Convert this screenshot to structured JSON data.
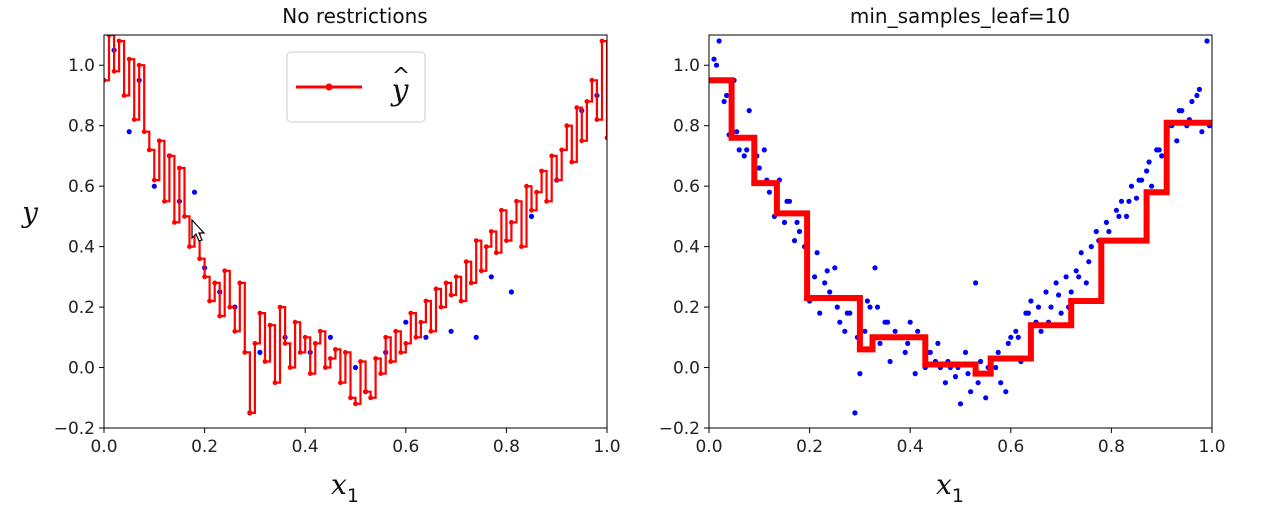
{
  "colors": {
    "points": "#0000ff",
    "prediction": "#ff0000",
    "axes": "#000000"
  },
  "chart_data": [
    {
      "type": "scatter",
      "title": "No restrictions",
      "xlabel": "x",
      "xlabel_sub": "1",
      "ylabel": "y",
      "xlim": [
        0.0,
        1.0
      ],
      "ylim": [
        -0.2,
        1.1
      ],
      "xticks": [
        "0.0",
        "0.2",
        "0.4",
        "0.6",
        "0.8",
        "1.0"
      ],
      "yticks": [
        "−0.2",
        "0.0",
        "0.2",
        "0.4",
        "0.6",
        "0.8",
        "1.0"
      ],
      "legend": {
        "label": "y",
        "label_hat": "^",
        "placement": "upper center"
      },
      "series": [
        {
          "kind": "points",
          "style": "blue dots",
          "x": [
            0.02,
            0.05,
            0.07,
            0.1,
            0.13,
            0.15,
            0.18,
            0.2,
            0.23,
            0.26,
            0.29,
            0.31,
            0.36,
            0.41,
            0.45,
            0.5,
            0.52,
            0.56,
            0.6,
            0.64,
            0.69,
            0.74,
            0.77,
            0.81,
            0.85,
            0.9,
            0.95,
            0.98
          ],
          "y": [
            1.05,
            0.78,
            0.95,
            0.6,
            0.7,
            0.55,
            0.58,
            0.33,
            0.25,
            0.2,
            -0.15,
            0.05,
            0.1,
            0.05,
            0.1,
            0.0,
            -0.08,
            0.05,
            0.15,
            0.1,
            0.12,
            0.1,
            0.3,
            0.25,
            0.5,
            0.62,
            0.85,
            0.9
          ]
        },
        {
          "kind": "step",
          "style": "red line with small markers",
          "x": [
            0.0,
            0.01,
            0.02,
            0.03,
            0.04,
            0.05,
            0.06,
            0.07,
            0.08,
            0.09,
            0.1,
            0.11,
            0.12,
            0.13,
            0.14,
            0.15,
            0.16,
            0.17,
            0.18,
            0.19,
            0.2,
            0.21,
            0.22,
            0.23,
            0.24,
            0.25,
            0.26,
            0.27,
            0.28,
            0.29,
            0.3,
            0.31,
            0.32,
            0.33,
            0.34,
            0.35,
            0.36,
            0.37,
            0.38,
            0.39,
            0.4,
            0.41,
            0.42,
            0.43,
            0.44,
            0.45,
            0.46,
            0.47,
            0.48,
            0.49,
            0.5,
            0.51,
            0.52,
            0.53,
            0.54,
            0.55,
            0.56,
            0.57,
            0.58,
            0.59,
            0.6,
            0.61,
            0.62,
            0.63,
            0.64,
            0.65,
            0.66,
            0.67,
            0.68,
            0.69,
            0.7,
            0.71,
            0.72,
            0.73,
            0.74,
            0.75,
            0.76,
            0.77,
            0.78,
            0.79,
            0.8,
            0.81,
            0.82,
            0.83,
            0.84,
            0.85,
            0.86,
            0.87,
            0.88,
            0.89,
            0.9,
            0.91,
            0.92,
            0.93,
            0.94,
            0.95,
            0.96,
            0.97,
            0.98,
            0.99,
            1.0
          ],
          "y": [
            0.95,
            1.1,
            0.98,
            1.08,
            0.9,
            1.02,
            0.82,
            1.0,
            0.78,
            0.72,
            0.62,
            0.75,
            0.55,
            0.7,
            0.48,
            0.66,
            0.5,
            0.4,
            0.45,
            0.36,
            0.3,
            0.22,
            0.28,
            0.17,
            0.32,
            0.2,
            0.12,
            0.28,
            0.05,
            -0.15,
            0.08,
            0.18,
            0.02,
            0.14,
            -0.05,
            0.2,
            0.08,
            0.0,
            0.15,
            0.05,
            0.1,
            -0.02,
            0.08,
            0.12,
            0.0,
            0.03,
            0.06,
            -0.05,
            0.05,
            -0.1,
            -0.12,
            0.02,
            -0.08,
            -0.1,
            0.03,
            -0.02,
            0.1,
            0.02,
            0.12,
            0.05,
            0.08,
            0.18,
            0.1,
            0.15,
            0.22,
            0.12,
            0.26,
            0.2,
            0.28,
            0.24,
            0.3,
            0.22,
            0.35,
            0.28,
            0.42,
            0.32,
            0.4,
            0.45,
            0.38,
            0.52,
            0.42,
            0.48,
            0.55,
            0.4,
            0.6,
            0.52,
            0.58,
            0.65,
            0.55,
            0.7,
            0.62,
            0.72,
            0.8,
            0.68,
            0.86,
            0.75,
            0.88,
            0.95,
            0.82,
            1.08,
            0.76
          ]
        }
      ]
    },
    {
      "type": "scatter",
      "title": "min_samples_leaf=10",
      "xlabel": "x",
      "xlabel_sub": "1",
      "ylabel": "",
      "xlim": [
        0.0,
        1.0
      ],
      "ylim": [
        -0.2,
        1.1
      ],
      "xticks": [
        "0.0",
        "0.2",
        "0.4",
        "0.6",
        "0.8",
        "1.0"
      ],
      "yticks": [
        "−0.2",
        "0.0",
        "0.2",
        "0.4",
        "0.6",
        "0.8",
        "1.0"
      ],
      "series": [
        {
          "kind": "points",
          "style": "blue dots",
          "x": [
            0.0,
            0.01,
            0.02,
            0.03,
            0.04,
            0.05,
            0.06,
            0.07,
            0.08,
            0.09,
            0.1,
            0.11,
            0.12,
            0.13,
            0.14,
            0.15,
            0.16,
            0.17,
            0.18,
            0.19,
            0.2,
            0.21,
            0.22,
            0.23,
            0.24,
            0.25,
            0.26,
            0.27,
            0.28,
            0.29,
            0.3,
            0.31,
            0.32,
            0.33,
            0.34,
            0.35,
            0.36,
            0.37,
            0.38,
            0.39,
            0.4,
            0.41,
            0.42,
            0.43,
            0.44,
            0.45,
            0.46,
            0.47,
            0.48,
            0.49,
            0.5,
            0.51,
            0.52,
            0.53,
            0.54,
            0.55,
            0.56,
            0.57,
            0.58,
            0.59,
            0.6,
            0.61,
            0.62,
            0.63,
            0.64,
            0.65,
            0.66,
            0.67,
            0.68,
            0.69,
            0.7,
            0.71,
            0.72,
            0.73,
            0.74,
            0.75,
            0.76,
            0.77,
            0.78,
            0.79,
            0.8,
            0.81,
            0.82,
            0.83,
            0.84,
            0.85,
            0.86,
            0.87,
            0.88,
            0.89,
            0.9,
            0.91,
            0.92,
            0.93,
            0.94,
            0.95,
            0.96,
            0.97,
            0.98,
            0.99,
            0.015,
            0.035,
            0.055,
            0.075,
            0.095,
            0.115,
            0.135,
            0.155,
            0.175,
            0.195,
            0.215,
            0.235,
            0.255,
            0.275,
            0.295,
            0.315,
            0.335,
            0.355,
            0.375,
            0.395,
            0.415,
            0.435,
            0.455,
            0.475,
            0.495,
            0.515,
            0.535,
            0.555,
            0.575,
            0.595,
            0.615,
            0.635,
            0.655,
            0.675,
            0.695,
            0.715,
            0.735,
            0.755,
            0.775,
            0.795,
            0.815,
            0.835,
            0.855,
            0.875,
            0.895,
            0.915,
            0.935,
            0.955,
            0.975,
            0.995
          ],
          "y": [
            0.95,
            1.02,
            1.08,
            0.88,
            0.77,
            0.95,
            0.72,
            0.7,
            0.85,
            0.74,
            0.66,
            0.72,
            0.58,
            0.5,
            0.62,
            0.48,
            0.55,
            0.42,
            0.45,
            0.4,
            0.22,
            0.3,
            0.18,
            0.28,
            0.25,
            0.33,
            0.15,
            0.12,
            0.18,
            -0.15,
            -0.02,
            0.12,
            0.2,
            0.33,
            0.08,
            0.15,
            0.02,
            0.12,
            0.1,
            0.05,
            0.15,
            -0.02,
            0.1,
            0.0,
            0.05,
            0.02,
            0.0,
            -0.05,
            0.0,
            -0.03,
            -0.12,
            0.05,
            -0.08,
            0.28,
            0.02,
            -0.1,
            -0.02,
            0.0,
            -0.05,
            -0.08,
            0.1,
            0.12,
            0.02,
            0.18,
            0.22,
            0.15,
            0.12,
            0.25,
            0.2,
            0.28,
            0.18,
            0.3,
            0.25,
            0.32,
            0.38,
            0.28,
            0.4,
            0.45,
            0.38,
            0.48,
            0.42,
            0.52,
            0.55,
            0.5,
            0.6,
            0.56,
            0.62,
            0.65,
            0.6,
            0.72,
            0.7,
            0.78,
            0.8,
            0.75,
            0.85,
            0.8,
            0.88,
            0.9,
            0.78,
            1.08,
            1.0,
            0.9,
            0.78,
            0.72,
            0.7,
            0.62,
            0.58,
            0.55,
            0.48,
            0.45,
            0.38,
            0.32,
            0.2,
            0.18,
            0.1,
            0.22,
            0.2,
            0.15,
            0.1,
            0.08,
            0.12,
            0.05,
            0.08,
            0.02,
            0.0,
            -0.02,
            -0.05,
            0.0,
            0.05,
            0.08,
            0.1,
            0.18,
            0.2,
            0.15,
            0.24,
            0.2,
            0.3,
            0.35,
            0.42,
            0.45,
            0.5,
            0.55,
            0.62,
            0.68,
            0.72,
            0.8,
            0.85,
            0.82,
            0.92,
            0.8
          ]
        },
        {
          "kind": "step",
          "style": "thick red step line",
          "x": [
            0.0,
            0.045,
            0.09,
            0.135,
            0.195,
            0.3,
            0.325,
            0.43,
            0.53,
            0.56,
            0.64,
            0.72,
            0.78,
            0.87,
            0.91,
            1.0
          ],
          "y": [
            0.95,
            0.76,
            0.61,
            0.51,
            0.23,
            0.06,
            0.1,
            0.01,
            -0.02,
            0.03,
            0.14,
            0.22,
            0.42,
            0.58,
            0.81,
            0.81
          ]
        }
      ]
    }
  ]
}
